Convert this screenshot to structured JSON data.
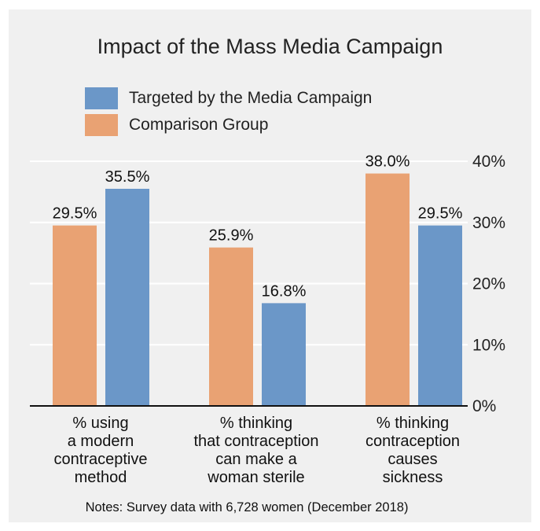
{
  "chart_data": {
    "type": "bar",
    "title": "Impact of the Mass Media Campaign",
    "categories": [
      "% using\na modern\ncontraceptive\nmethod",
      "% thinking\nthat contraception\ncan make a\nwoman sterile",
      "% thinking\ncontraception\ncauses\nsickness"
    ],
    "series": [
      {
        "name": "Targeted by the Media Campaign",
        "color": "#6b97c8",
        "values": [
          35.5,
          16.8,
          29.5
        ]
      },
      {
        "name": "Comparison Group",
        "color": "#e9a273",
        "values": [
          29.5,
          25.9,
          38.0
        ]
      }
    ],
    "bar_order": [
      [
        "Comparison Group",
        "Targeted by the Media Campaign"
      ],
      [
        "Comparison Group",
        "Targeted by the Media Campaign"
      ],
      [
        "Comparison Group",
        "Targeted by the Media Campaign"
      ]
    ],
    "data_labels": [
      [
        "29.5%",
        "35.5%"
      ],
      [
        "25.9%",
        "16.8%"
      ],
      [
        "38.0%",
        "29.5%"
      ]
    ],
    "yticks": [
      "0%",
      "10%",
      "20%",
      "30%",
      "40%"
    ],
    "ytick_values": [
      0,
      10,
      20,
      30,
      40
    ],
    "ylim": [
      0,
      40
    ],
    "yaxis_side": "right",
    "grid": true,
    "legend_position": "top-left",
    "xlabel": "",
    "ylabel": ""
  },
  "note": "Notes: Survey data with 6,728 women (December 2018)"
}
